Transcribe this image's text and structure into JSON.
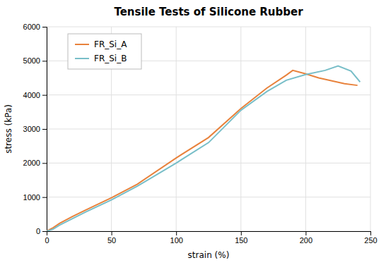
{
  "chart_data": {
    "type": "line",
    "title": "Tensile Tests of Silicone Rubber",
    "xlabel": "strain (%)",
    "ylabel": "stress (kPa)",
    "xlim": [
      0,
      250
    ],
    "ylim": [
      0,
      6000
    ],
    "xticks": [
      0,
      50,
      100,
      150,
      200,
      250
    ],
    "yticks": [
      0,
      1000,
      2000,
      3000,
      4000,
      5000,
      6000
    ],
    "grid": true,
    "legend": "upper left",
    "series": [
      {
        "name": "FR_Si_A",
        "color": "#E8823C",
        "x": [
          0,
          5,
          10,
          20,
          30,
          50,
          70,
          100,
          125,
          150,
          170,
          185,
          190,
          200,
          210,
          230,
          240
        ],
        "values": [
          0,
          100,
          230,
          430,
          620,
          980,
          1380,
          2150,
          2750,
          3600,
          4200,
          4580,
          4720,
          4620,
          4500,
          4330,
          4280
        ]
      },
      {
        "name": "FR_Si_B",
        "color": "#78BEC8",
        "x": [
          0,
          5,
          10,
          20,
          30,
          50,
          70,
          100,
          125,
          150,
          170,
          185,
          200,
          215,
          225,
          235,
          242
        ],
        "values": [
          0,
          60,
          180,
          370,
          560,
          920,
          1320,
          2000,
          2600,
          3550,
          4100,
          4430,
          4600,
          4720,
          4850,
          4700,
          4380
        ]
      }
    ]
  }
}
